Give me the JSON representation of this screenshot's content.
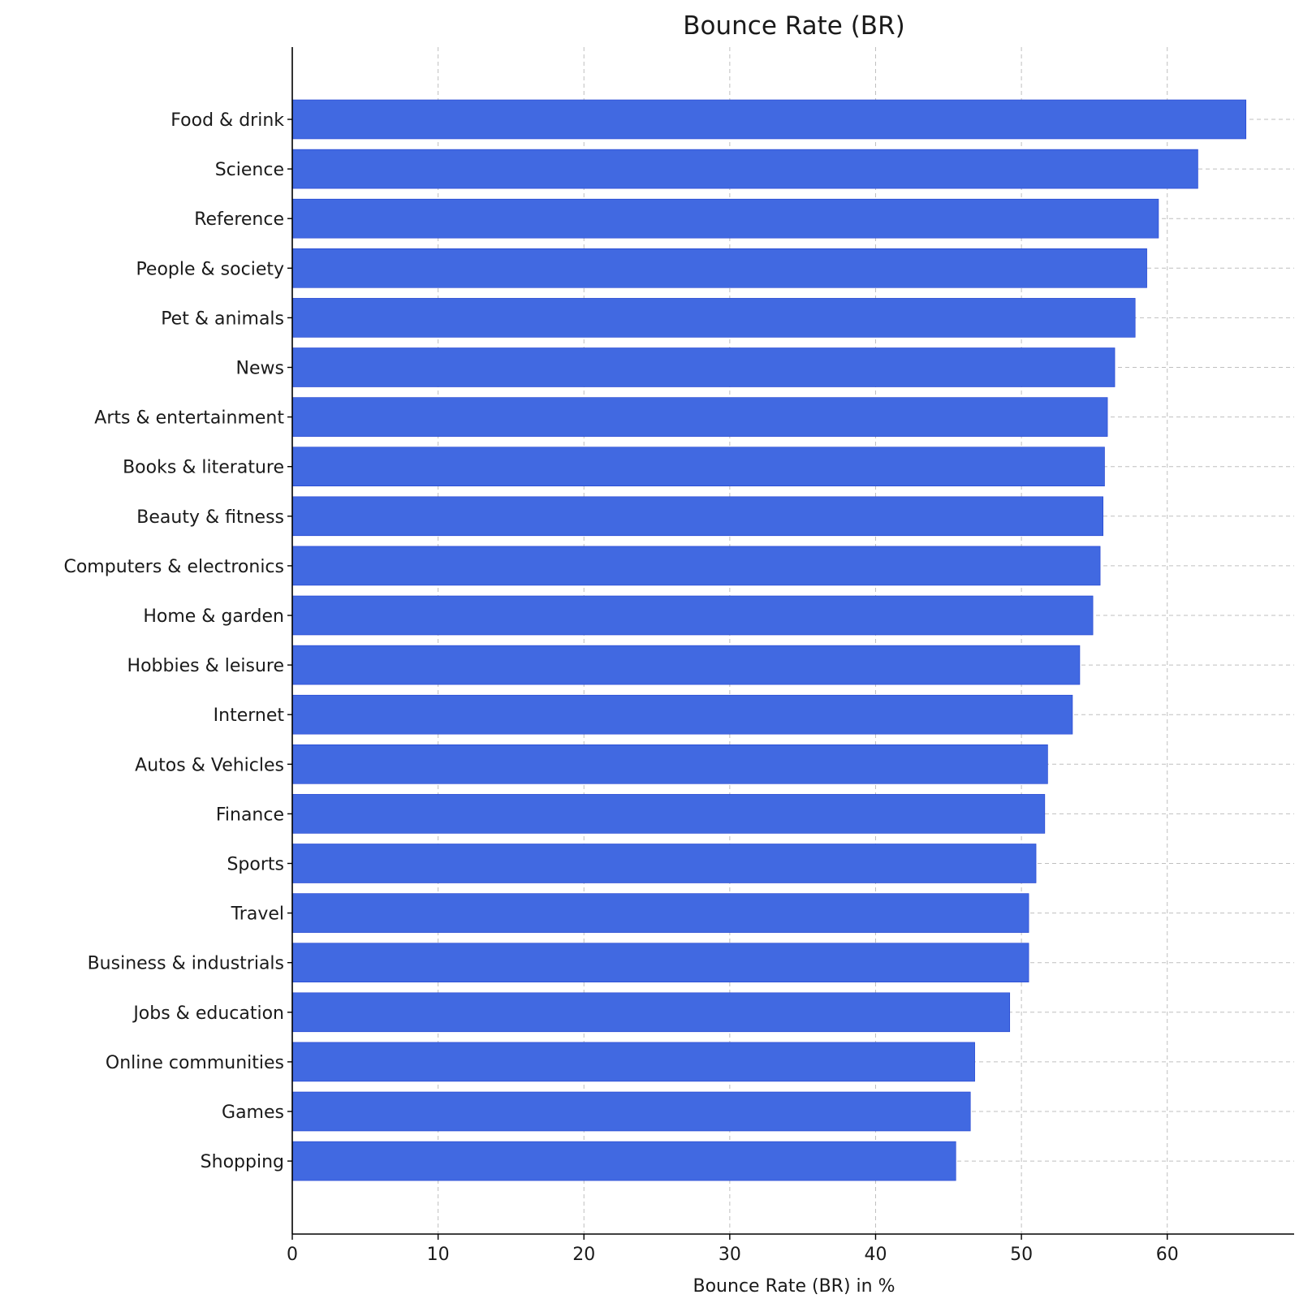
{
  "chart_data": {
    "type": "bar",
    "orientation": "horizontal",
    "title": "Bounce Rate (BR)",
    "xlabel": "Bounce Rate (BR) in %",
    "ylabel": "",
    "xlim": [
      0,
      68.7
    ],
    "xticks": [
      0,
      10,
      20,
      30,
      40,
      50,
      60
    ],
    "grid": true,
    "bar_color": "#4169e1",
    "categories": [
      "Food & drink",
      "Science",
      "Reference",
      "People & society",
      "Pet & animals",
      "News",
      "Arts & entertainment",
      "Books & literature",
      "Beauty & fitness",
      "Computers & electronics",
      "Home & garden",
      "Hobbies & leisure",
      "Internet",
      "Autos & Vehicles",
      "Finance",
      "Sports",
      "Travel",
      "Business & industrials",
      "Jobs & education",
      "Online communities",
      "Games",
      "Shopping"
    ],
    "values": [
      65.4,
      62.1,
      59.4,
      58.6,
      57.8,
      56.4,
      55.9,
      55.7,
      55.6,
      55.4,
      54.9,
      54.0,
      53.5,
      51.8,
      51.6,
      51.0,
      50.5,
      50.5,
      49.2,
      46.8,
      46.5,
      45.5
    ]
  }
}
